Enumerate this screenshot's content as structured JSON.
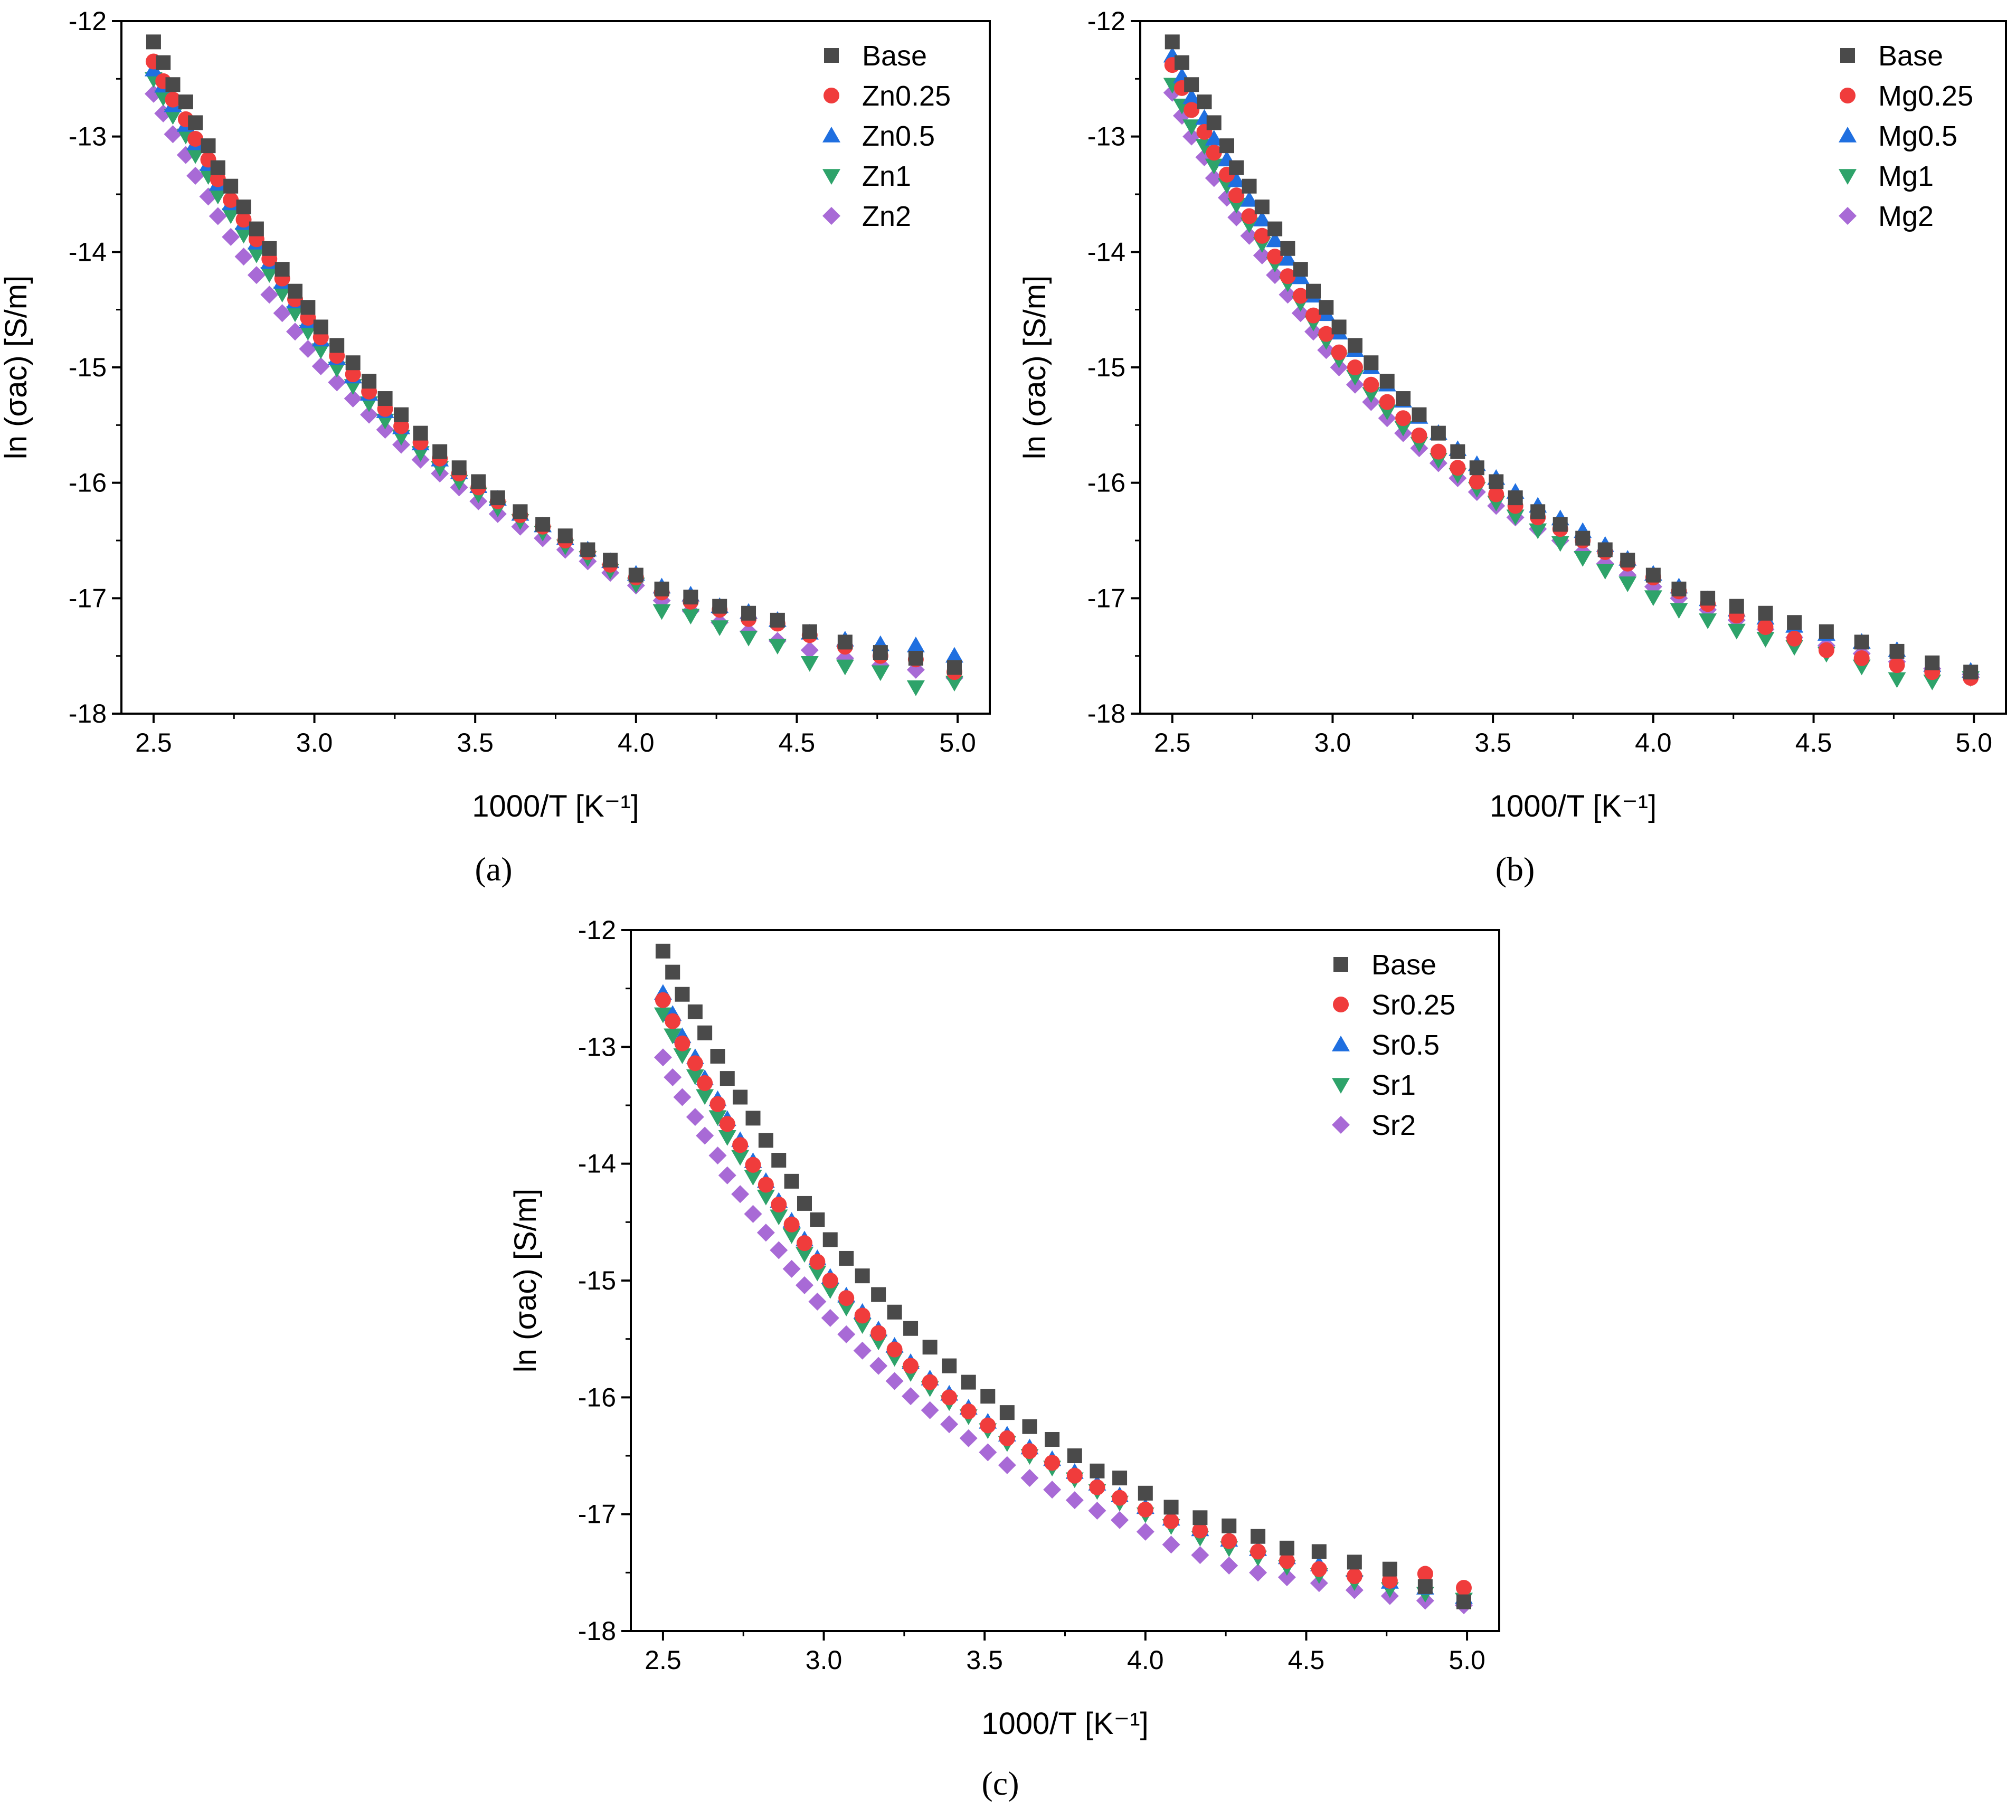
{
  "figure": {
    "panels": [
      {
        "caption": "(a)",
        "caption_letter": "a"
      },
      {
        "caption": "(b)",
        "caption_letter": "b"
      },
      {
        "caption": "(c)",
        "caption_letter": "c"
      }
    ]
  },
  "colors": {
    "Base": "#4a4a4a",
    "Series025": "#f03c3c",
    "Series05": "#1f6fe0",
    "Series1": "#2ea36a",
    "Series2": "#a86ad6"
  },
  "chart_data": [
    {
      "type": "scatter",
      "panel": "a",
      "title": "",
      "xlabel": "1000/T [K⁻¹]",
      "ylabel": "ln (σac) [S/m]",
      "xlim": [
        2.4,
        5.1
      ],
      "ylim": [
        -18,
        -12
      ],
      "xticks": [
        2.5,
        3.0,
        3.5,
        4.0,
        4.5,
        5.0
      ],
      "xtick_labels": [
        "2.5",
        "3.0",
        "3.5",
        "4.0",
        "4.5",
        "5.0"
      ],
      "yticks": [
        -12,
        -13,
        -14,
        -15,
        -16,
        -17,
        -18
      ],
      "ytick_labels": [
        "-12",
        "-13",
        "-14",
        "-15",
        "-16",
        "-17",
        "-18"
      ],
      "legend_position": "top-right",
      "x": [
        2.5,
        2.53,
        2.56,
        2.6,
        2.63,
        2.67,
        2.7,
        2.74,
        2.78,
        2.82,
        2.86,
        2.9,
        2.94,
        2.98,
        3.02,
        3.07,
        3.12,
        3.17,
        3.22,
        3.27,
        3.33,
        3.39,
        3.45,
        3.51,
        3.57,
        3.64,
        3.71,
        3.78,
        3.85,
        3.92,
        4.0,
        4.08,
        4.17,
        4.26,
        4.35,
        4.44,
        4.54,
        4.65,
        4.76,
        4.87,
        4.99
      ],
      "series": [
        {
          "name": "Base",
          "marker": "square",
          "color_key": "Base",
          "values": [
            -12.18,
            -12.36,
            -12.55,
            -12.7,
            -12.88,
            -13.08,
            -13.27,
            -13.43,
            -13.61,
            -13.8,
            -13.97,
            -14.15,
            -14.34,
            -14.48,
            -14.65,
            -14.81,
            -14.96,
            -15.12,
            -15.27,
            -15.41,
            -15.57,
            -15.73,
            -15.87,
            -15.99,
            -16.13,
            -16.25,
            -16.36,
            -16.46,
            -16.58,
            -16.67,
            -16.8,
            -16.92,
            -16.99,
            -17.07,
            -17.13,
            -17.19,
            -17.29,
            -17.38,
            -17.47,
            -17.52,
            -17.6
          ]
        },
        {
          "name": "Zn0.25",
          "marker": "circle",
          "color_key": "Series025",
          "values": [
            -12.35,
            -12.52,
            -12.68,
            -12.85,
            -13.02,
            -13.2,
            -13.37,
            -13.55,
            -13.72,
            -13.89,
            -14.06,
            -14.23,
            -14.41,
            -14.57,
            -14.74,
            -14.9,
            -15.06,
            -15.21,
            -15.36,
            -15.51,
            -15.65,
            -15.79,
            -15.92,
            -16.04,
            -16.16,
            -16.28,
            -16.38,
            -16.5,
            -16.6,
            -16.71,
            -16.82,
            -16.95,
            -17.03,
            -17.1,
            -17.18,
            -17.22,
            -17.32,
            -17.42,
            -17.5,
            -17.53,
            -17.64
          ]
        },
        {
          "name": "Zn0.5",
          "marker": "triangle-up",
          "color_key": "Series05",
          "values": [
            -12.42,
            -12.56,
            -12.73,
            -12.9,
            -13.06,
            -13.24,
            -13.41,
            -13.58,
            -13.75,
            -13.92,
            -14.09,
            -14.26,
            -14.43,
            -14.6,
            -14.76,
            -14.92,
            -15.08,
            -15.23,
            -15.38,
            -15.52,
            -15.66,
            -15.8,
            -15.91,
            -16.03,
            -16.14,
            -16.27,
            -16.37,
            -16.48,
            -16.58,
            -16.68,
            -16.79,
            -16.9,
            -16.97,
            -17.07,
            -17.12,
            -17.19,
            -17.3,
            -17.36,
            -17.4,
            -17.41,
            -17.5
          ]
        },
        {
          "name": "Zn1",
          "marker": "triangle-down",
          "color_key": "Series1",
          "values": [
            -12.5,
            -12.66,
            -12.82,
            -12.99,
            -13.16,
            -13.34,
            -13.51,
            -13.68,
            -13.85,
            -14.02,
            -14.19,
            -14.36,
            -14.53,
            -14.69,
            -14.85,
            -15.01,
            -15.16,
            -15.31,
            -15.46,
            -15.6,
            -15.74,
            -15.87,
            -15.99,
            -16.1,
            -16.22,
            -16.33,
            -16.43,
            -16.55,
            -16.65,
            -16.76,
            -16.88,
            -17.11,
            -17.15,
            -17.25,
            -17.34,
            -17.41,
            -17.56,
            -17.59,
            -17.64,
            -17.77,
            -17.73
          ]
        },
        {
          "name": "Zn2",
          "marker": "diamond",
          "color_key": "Series2",
          "values": [
            -12.63,
            -12.8,
            -12.98,
            -13.16,
            -13.34,
            -13.52,
            -13.69,
            -13.87,
            -14.04,
            -14.2,
            -14.37,
            -14.53,
            -14.69,
            -14.84,
            -14.99,
            -15.13,
            -15.27,
            -15.41,
            -15.54,
            -15.67,
            -15.8,
            -15.92,
            -16.04,
            -16.16,
            -16.27,
            -16.38,
            -16.48,
            -16.58,
            -16.68,
            -16.78,
            -16.89,
            -17.02,
            -17.11,
            -17.21,
            -17.29,
            -17.37,
            -17.45,
            -17.52,
            -17.58,
            -17.62,
            -17.69
          ]
        }
      ]
    },
    {
      "type": "scatter",
      "panel": "b",
      "title": "",
      "xlabel": "1000/T [K⁻¹]",
      "ylabel": "ln (σac) [S/m]",
      "xlim": [
        2.4,
        5.1
      ],
      "ylim": [
        -18,
        -12
      ],
      "xticks": [
        2.5,
        3.0,
        3.5,
        4.0,
        4.5,
        5.0
      ],
      "xtick_labels": [
        "2.5",
        "3.0",
        "3.5",
        "4.0",
        "4.5",
        "5.0"
      ],
      "yticks": [
        -12,
        -13,
        -14,
        -15,
        -16,
        -17,
        -18
      ],
      "ytick_labels": [
        "-12",
        "-13",
        "-14",
        "-15",
        "-16",
        "-17",
        "-18"
      ],
      "legend_position": "top-right",
      "x": [
        2.5,
        2.53,
        2.56,
        2.6,
        2.63,
        2.67,
        2.7,
        2.74,
        2.78,
        2.82,
        2.86,
        2.9,
        2.94,
        2.98,
        3.02,
        3.07,
        3.12,
        3.17,
        3.22,
        3.27,
        3.33,
        3.39,
        3.45,
        3.51,
        3.57,
        3.64,
        3.71,
        3.78,
        3.85,
        3.92,
        4.0,
        4.08,
        4.17,
        4.26,
        4.35,
        4.44,
        4.54,
        4.65,
        4.76,
        4.87,
        4.99
      ],
      "series": [
        {
          "name": "Base",
          "marker": "square",
          "color_key": "Base",
          "values": [
            -12.18,
            -12.36,
            -12.55,
            -12.7,
            -12.88,
            -13.08,
            -13.27,
            -13.43,
            -13.61,
            -13.8,
            -13.97,
            -14.15,
            -14.34,
            -14.48,
            -14.65,
            -14.81,
            -14.96,
            -15.12,
            -15.27,
            -15.41,
            -15.57,
            -15.73,
            -15.87,
            -15.99,
            -16.13,
            -16.25,
            -16.36,
            -16.48,
            -16.58,
            -16.67,
            -16.8,
            -16.92,
            -17.0,
            -17.07,
            -17.13,
            -17.21,
            -17.29,
            -17.38,
            -17.46,
            -17.56,
            -17.64
          ]
        },
        {
          "name": "Mg0.25",
          "marker": "circle",
          "color_key": "Series025",
          "values": [
            -12.38,
            -12.58,
            -12.77,
            -12.96,
            -13.14,
            -13.33,
            -13.51,
            -13.69,
            -13.86,
            -14.04,
            -14.21,
            -14.38,
            -14.55,
            -14.71,
            -14.87,
            -15.0,
            -15.15,
            -15.3,
            -15.44,
            -15.59,
            -15.73,
            -15.87,
            -15.99,
            -16.1,
            -16.2,
            -16.3,
            -16.4,
            -16.5,
            -16.6,
            -16.7,
            -16.82,
            -16.94,
            -17.05,
            -17.15,
            -17.25,
            -17.35,
            -17.45,
            -17.52,
            -17.58,
            -17.64,
            -17.69
          ]
        },
        {
          "name": "Mg0.5",
          "marker": "triangle-up",
          "color_key": "Series05",
          "values": [
            -12.3,
            -12.48,
            -12.66,
            -12.84,
            -13.02,
            -13.2,
            -13.38,
            -13.55,
            -13.72,
            -13.9,
            -14.06,
            -14.22,
            -14.38,
            -14.54,
            -14.7,
            -14.85,
            -15.0,
            -15.15,
            -15.29,
            -15.43,
            -15.57,
            -15.71,
            -15.84,
            -15.96,
            -16.08,
            -16.2,
            -16.31,
            -16.42,
            -16.54,
            -16.66,
            -16.79,
            -16.9,
            -17.01,
            -17.1,
            -17.17,
            -17.24,
            -17.31,
            -17.38,
            -17.45,
            -17.58,
            -17.63
          ]
        },
        {
          "name": "Mg1",
          "marker": "triangle-down",
          "color_key": "Series1",
          "values": [
            -12.55,
            -12.73,
            -12.91,
            -13.08,
            -13.25,
            -13.42,
            -13.59,
            -13.76,
            -13.93,
            -14.1,
            -14.27,
            -14.44,
            -14.61,
            -14.77,
            -14.93,
            -15.08,
            -15.23,
            -15.38,
            -15.52,
            -15.66,
            -15.8,
            -15.93,
            -16.05,
            -16.17,
            -16.29,
            -16.41,
            -16.52,
            -16.65,
            -16.76,
            -16.87,
            -16.99,
            -17.1,
            -17.19,
            -17.28,
            -17.35,
            -17.42,
            -17.48,
            -17.59,
            -17.7,
            -17.72,
            -17.69
          ]
        },
        {
          "name": "Mg2",
          "marker": "diamond",
          "color_key": "Series2",
          "values": [
            -12.62,
            -12.82,
            -13.0,
            -13.18,
            -13.36,
            -13.53,
            -13.7,
            -13.86,
            -14.03,
            -14.2,
            -14.37,
            -14.53,
            -14.69,
            -14.85,
            -15.0,
            -15.15,
            -15.3,
            -15.44,
            -15.57,
            -15.7,
            -15.83,
            -15.96,
            -16.08,
            -16.2,
            -16.3,
            -16.4,
            -16.5,
            -16.6,
            -16.7,
            -16.8,
            -16.9,
            -17.0,
            -17.1,
            -17.19,
            -17.27,
            -17.34,
            -17.41,
            -17.48,
            -17.55,
            -17.61,
            -17.66
          ]
        }
      ]
    },
    {
      "type": "scatter",
      "panel": "c",
      "title": "",
      "xlabel": "1000/T [K⁻¹]",
      "ylabel": "ln (σac) [S/m]",
      "xlim": [
        2.4,
        5.1
      ],
      "ylim": [
        -18,
        -12
      ],
      "xticks": [
        2.5,
        3.0,
        3.5,
        4.0,
        4.5,
        5.0
      ],
      "xtick_labels": [
        "2.5",
        "3.0",
        "3.5",
        "4.0",
        "4.5",
        "5.0"
      ],
      "yticks": [
        -12,
        -13,
        -14,
        -15,
        -16,
        -17,
        -18
      ],
      "ytick_labels": [
        "-12",
        "-13",
        "-14",
        "-15",
        "-16",
        "-17",
        "-18"
      ],
      "legend_position": "top-right",
      "x": [
        2.5,
        2.53,
        2.56,
        2.6,
        2.63,
        2.67,
        2.7,
        2.74,
        2.78,
        2.82,
        2.86,
        2.9,
        2.94,
        2.98,
        3.02,
        3.07,
        3.12,
        3.17,
        3.22,
        3.27,
        3.33,
        3.39,
        3.45,
        3.51,
        3.57,
        3.64,
        3.71,
        3.78,
        3.85,
        3.92,
        4.0,
        4.08,
        4.17,
        4.26,
        4.35,
        4.44,
        4.54,
        4.65,
        4.76,
        4.87,
        4.99
      ],
      "series": [
        {
          "name": "Base",
          "marker": "square",
          "color_key": "Base",
          "values": [
            -12.18,
            -12.36,
            -12.55,
            -12.7,
            -12.88,
            -13.08,
            -13.27,
            -13.43,
            -13.61,
            -13.8,
            -13.97,
            -14.15,
            -14.34,
            -14.48,
            -14.65,
            -14.81,
            -14.96,
            -15.12,
            -15.27,
            -15.41,
            -15.57,
            -15.73,
            -15.87,
            -15.99,
            -16.13,
            -16.25,
            -16.36,
            -16.5,
            -16.63,
            -16.69,
            -16.82,
            -16.94,
            -17.03,
            -17.1,
            -17.19,
            -17.29,
            -17.32,
            -17.41,
            -17.47,
            -17.62,
            -17.75
          ]
        },
        {
          "name": "Sr0.25",
          "marker": "circle",
          "color_key": "Series025",
          "values": [
            -12.6,
            -12.78,
            -12.97,
            -13.14,
            -13.31,
            -13.49,
            -13.66,
            -13.84,
            -14.01,
            -14.18,
            -14.35,
            -14.52,
            -14.68,
            -14.84,
            -15.0,
            -15.15,
            -15.3,
            -15.45,
            -15.59,
            -15.73,
            -15.87,
            -16.0,
            -16.12,
            -16.24,
            -16.35,
            -16.46,
            -16.56,
            -16.67,
            -16.77,
            -16.86,
            -16.96,
            -17.06,
            -17.14,
            -17.23,
            -17.32,
            -17.4,
            -17.47,
            -17.53,
            -17.57,
            -17.51,
            -17.63
          ]
        },
        {
          "name": "Sr0.5",
          "marker": "triangle-up",
          "color_key": "Series05",
          "values": [
            -12.54,
            -12.72,
            -12.91,
            -13.09,
            -13.27,
            -13.45,
            -13.62,
            -13.8,
            -13.98,
            -14.15,
            -14.32,
            -14.49,
            -14.65,
            -14.81,
            -14.97,
            -15.13,
            -15.27,
            -15.42,
            -15.56,
            -15.7,
            -15.84,
            -15.97,
            -16.09,
            -16.21,
            -16.32,
            -16.43,
            -16.53,
            -16.64,
            -16.74,
            -16.84,
            -16.94,
            -17.04,
            -17.13,
            -17.22,
            -17.3,
            -17.37,
            -17.43,
            -17.48,
            -17.58,
            -17.63,
            -17.71
          ]
        },
        {
          "name": "Sr1",
          "marker": "triangle-down",
          "color_key": "Series1",
          "values": [
            -12.72,
            -12.9,
            -13.07,
            -13.25,
            -13.42,
            -13.6,
            -13.77,
            -13.94,
            -14.11,
            -14.28,
            -14.45,
            -14.61,
            -14.77,
            -14.93,
            -15.08,
            -15.23,
            -15.38,
            -15.52,
            -15.66,
            -15.79,
            -15.92,
            -16.04,
            -16.16,
            -16.28,
            -16.39,
            -16.5,
            -16.6,
            -16.7,
            -16.8,
            -16.9,
            -17.0,
            -17.1,
            -17.2,
            -17.29,
            -17.37,
            -17.45,
            -17.52,
            -17.58,
            -17.64,
            -17.68,
            -17.73
          ]
        },
        {
          "name": "Sr2",
          "marker": "diamond",
          "color_key": "Series2",
          "values": [
            -13.09,
            -13.26,
            -13.43,
            -13.6,
            -13.76,
            -13.93,
            -14.1,
            -14.26,
            -14.43,
            -14.59,
            -14.74,
            -14.9,
            -15.04,
            -15.18,
            -15.32,
            -15.46,
            -15.6,
            -15.73,
            -15.86,
            -15.99,
            -16.11,
            -16.23,
            -16.35,
            -16.47,
            -16.58,
            -16.69,
            -16.79,
            -16.88,
            -16.97,
            -17.05,
            -17.15,
            -17.26,
            -17.35,
            -17.44,
            -17.5,
            -17.54,
            -17.59,
            -17.65,
            -17.7,
            -17.74,
            -17.78
          ]
        }
      ]
    }
  ]
}
